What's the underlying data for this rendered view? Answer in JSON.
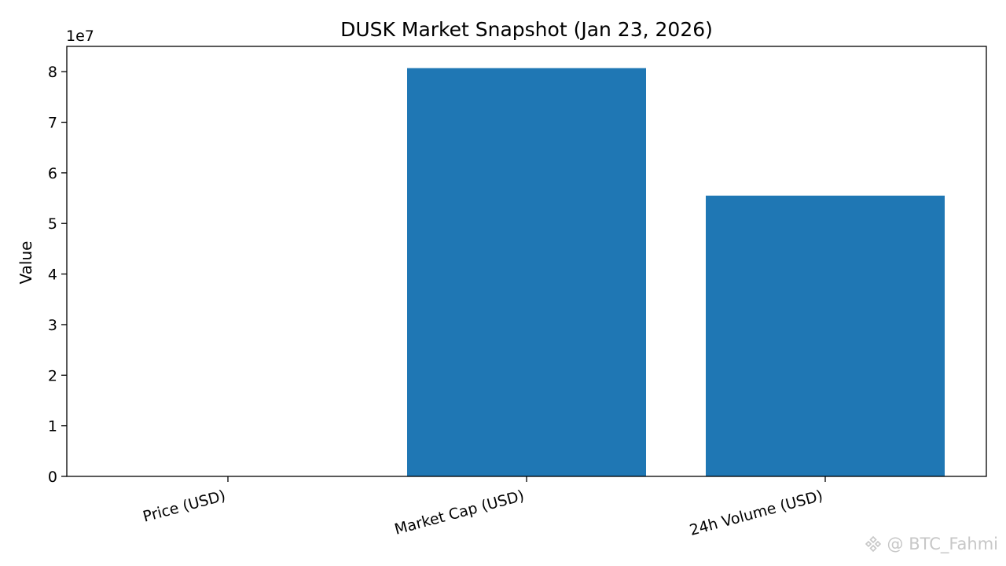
{
  "chart_data": {
    "type": "bar",
    "title": "DUSK Market Snapshot (Jan 23, 2026)",
    "xlabel": "",
    "ylabel": "Value",
    "y_offset_label": "1e7",
    "categories": [
      "Price (USD)",
      "Market Cap (USD)",
      "24h Volume (USD)"
    ],
    "values": [
      0.16,
      80700000,
      55500000
    ],
    "ylim": [
      0,
      85000000
    ],
    "yticks": [
      0,
      10000000,
      20000000,
      30000000,
      40000000,
      50000000,
      60000000,
      70000000,
      80000000
    ],
    "ytick_labels": [
      "0",
      "1",
      "2",
      "3",
      "4",
      "5",
      "6",
      "7",
      "8"
    ],
    "bar_color": "#1f77b4",
    "grid": false,
    "legend": "none"
  },
  "watermark": {
    "text": "@ BTC_Fahmi",
    "logo_icon": "binance-logo-icon"
  }
}
